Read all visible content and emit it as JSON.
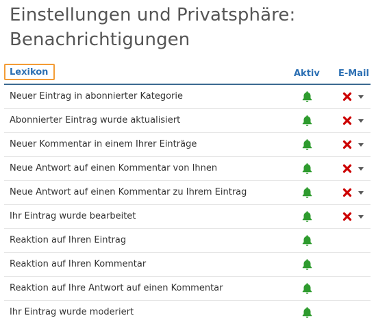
{
  "page": {
    "title_line1": "Einstellungen und Privatsphäre:",
    "title_line2": "Benachrichtigungen"
  },
  "table": {
    "headers": {
      "category": "Lexikon",
      "active": "Aktiv",
      "email": "E-Mail"
    },
    "rows": [
      {
        "label": "Neuer Eintrag in abonnierter Kategorie",
        "active": true,
        "email": "off"
      },
      {
        "label": "Abonnierter Eintrag wurde aktualisiert",
        "active": true,
        "email": "off"
      },
      {
        "label": "Neuer Kommentar in einem Ihrer Einträge",
        "active": true,
        "email": "off"
      },
      {
        "label": "Neue Antwort auf einen Kommentar von Ihnen",
        "active": true,
        "email": "off"
      },
      {
        "label": "Neue Antwort auf einen Kommentar zu Ihrem Eintrag",
        "active": true,
        "email": "off"
      },
      {
        "label": "Ihr Eintrag wurde bearbeitet",
        "active": true,
        "email": "off"
      },
      {
        "label": "Reaktion auf Ihren Eintrag",
        "active": true,
        "email": null
      },
      {
        "label": "Reaktion auf Ihren Kommentar",
        "active": true,
        "email": null
      },
      {
        "label": "Reaktion auf Ihre Antwort auf einen Kommentar",
        "active": true,
        "email": null
      },
      {
        "label": "Ihr Eintrag wurde moderiert",
        "active": true,
        "email": null
      }
    ]
  },
  "colors": {
    "bell_active": "#2e9b2e",
    "email_off": "#cc0000",
    "header_text": "#2b6fb3",
    "header_rule": "#3b6a91",
    "focus_outline": "#f39c35"
  },
  "icons": {
    "active": "bell-icon",
    "email_off": "x-icon",
    "dropdown": "caret-down-icon"
  }
}
